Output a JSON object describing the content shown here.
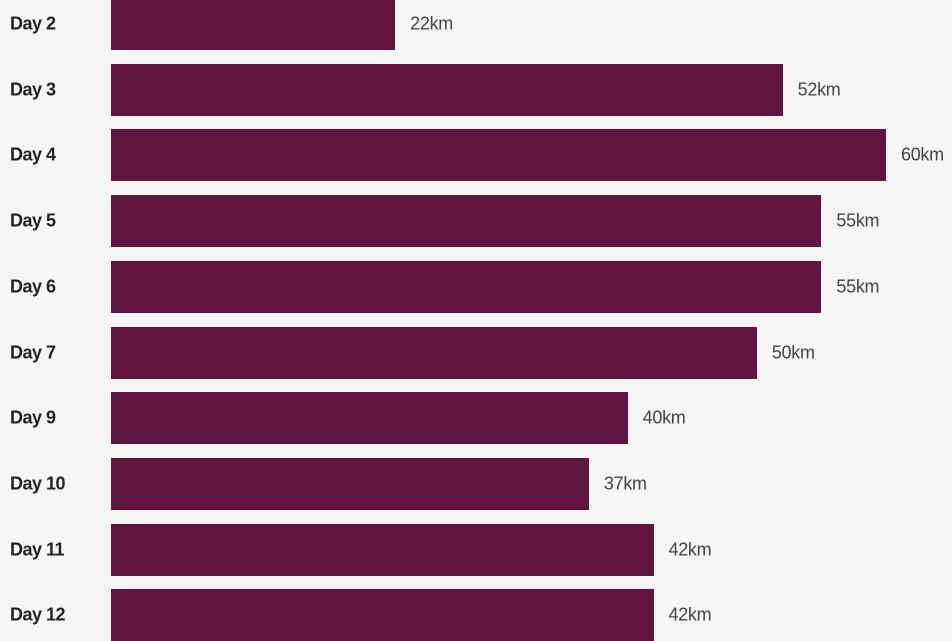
{
  "chart_data": {
    "type": "bar",
    "orientation": "horizontal",
    "categories": [
      "Day 2",
      "Day 3",
      "Day 4",
      "Day 5",
      "Day 6",
      "Day 7",
      "Day 9",
      "Day 10",
      "Day 11",
      "Day 12"
    ],
    "values": [
      22,
      52,
      60,
      55,
      55,
      50,
      40,
      37,
      42,
      42
    ],
    "value_labels": [
      "22km",
      "52km",
      "60km",
      "55km",
      "55km",
      "50km",
      "40km",
      "37km",
      "42km",
      "42km"
    ],
    "unit": "km",
    "title": "",
    "xlabel": "",
    "ylabel": "",
    "xlim": [
      0,
      60
    ],
    "grid": false,
    "legend": "none"
  },
  "colors": {
    "bar": "#611540",
    "background": "#f6f6f6",
    "category_text": "#222222",
    "value_text": "#444444"
  }
}
